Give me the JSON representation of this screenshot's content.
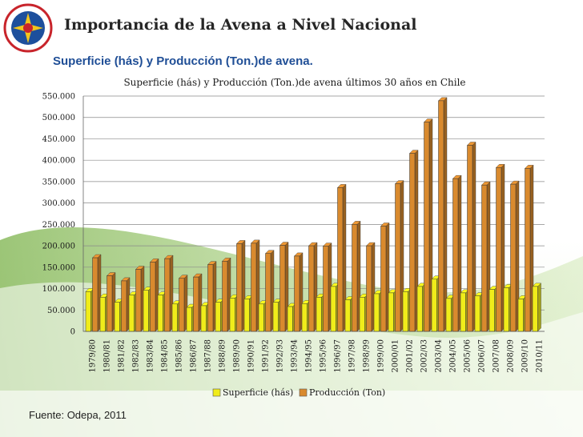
{
  "slide": {
    "title": "Importancia de la Avena a Nivel Nacional",
    "subtitle": "Superficie (hás) y Producción (Ton.)de avena.",
    "source": "Fuente: Odepa, 2011"
  },
  "colors": {
    "superficie": "#f0ec1a",
    "produccion": "#d98a2e",
    "title": "#262626",
    "subtitle": "#1f4e96"
  },
  "chart_data": {
    "type": "bar",
    "title": "Superficie (hás) y Producción (Ton.)de avena últimos 30 años en Chile",
    "xlabel": "",
    "ylabel": "",
    "ylim": [
      0,
      550000
    ],
    "yticks": [
      0,
      50000,
      100000,
      150000,
      200000,
      250000,
      300000,
      350000,
      400000,
      450000,
      500000,
      550000
    ],
    "ytick_labels": [
      "0",
      "50.000",
      "100.000",
      "150.000",
      "200.000",
      "250.000",
      "300.000",
      "350.000",
      "400.000",
      "450.000",
      "500.000",
      "550.000"
    ],
    "grid": true,
    "legend": "bottom",
    "categories": [
      "1979/80",
      "1980/81",
      "1981/82",
      "1982/83",
      "1983/84",
      "1984/85",
      "1985/86",
      "1986/87",
      "1987/88",
      "1988/89",
      "1989/90",
      "1990/91",
      "1991/92",
      "1992/93",
      "1993/94",
      "1994/95",
      "1995/96",
      "1996/97",
      "1997/98",
      "1998/99",
      "1999/00",
      "2000/01",
      "2001/02",
      "2002/03",
      "2003/04",
      "2004/05",
      "2005/06",
      "2006/07",
      "2007/08",
      "2008/09",
      "2009/10",
      "2010/11"
    ],
    "series": [
      {
        "name": "Superficie (hás)",
        "color": "#f0ec1a",
        "values": [
          93000,
          80000,
          68000,
          85000,
          96000,
          85000,
          64000,
          56000,
          60000,
          68000,
          78000,
          76000,
          64000,
          68000,
          58000,
          65000,
          80000,
          105000,
          74000,
          80000,
          88000,
          90000,
          93000,
          105000,
          122000,
          77000,
          90000,
          83000,
          98000,
          102000,
          76000,
          105000
        ]
      },
      {
        "name": "Producción (Ton)",
        "color": "#d98a2e",
        "values": [
          172000,
          130000,
          118000,
          145000,
          162000,
          170000,
          124000,
          127000,
          156000,
          164000,
          205000,
          206000,
          182000,
          201000,
          176000,
          200000,
          199000,
          336000,
          250000,
          200000,
          246000,
          345000,
          416000,
          489000,
          539000,
          357000,
          435000,
          342000,
          383000,
          344000,
          381000,
          null
        ]
      }
    ]
  }
}
